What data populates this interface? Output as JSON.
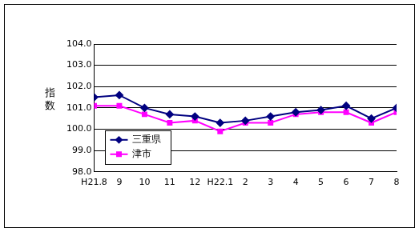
{
  "chart_data": {
    "type": "line",
    "y_label": "指数",
    "categories": [
      "H21.8",
      "9",
      "10",
      "11",
      "12",
      "H22.1",
      "2",
      "3",
      "4",
      "5",
      "6",
      "7",
      "8"
    ],
    "series": [
      {
        "name": "三重県",
        "color": "#000080",
        "marker": "diamond",
        "values": [
          101.5,
          101.6,
          101.0,
          100.7,
          100.6,
          100.3,
          100.4,
          100.6,
          100.8,
          100.9,
          101.1,
          100.5,
          101.0
        ]
      },
      {
        "name": "津市",
        "color": "#ff00ff",
        "marker": "square",
        "values": [
          101.1,
          101.1,
          100.7,
          100.3,
          100.4,
          99.9,
          100.3,
          100.3,
          100.7,
          100.8,
          100.8,
          100.3,
          100.8
        ]
      }
    ],
    "ylim": [
      98,
      104
    ],
    "yticks": [
      {
        "value": 98,
        "label": "98.0"
      },
      {
        "value": 99,
        "label": "99.0"
      },
      {
        "value": 100,
        "label": "100.0"
      },
      {
        "value": 101,
        "label": "101.0"
      },
      {
        "value": 102,
        "label": "102.0"
      },
      {
        "value": 103,
        "label": "103.0"
      },
      {
        "value": 104,
        "label": "104.0"
      }
    ],
    "grid": true,
    "legend": "lower left"
  }
}
